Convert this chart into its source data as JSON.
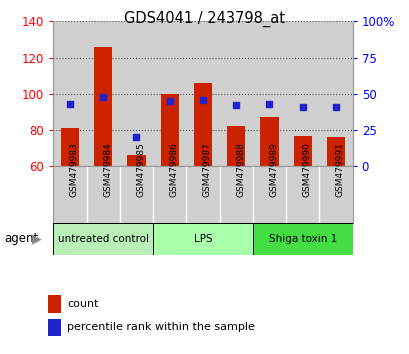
{
  "title": "GDS4041 / 243798_at",
  "samples": [
    "GSM479983",
    "GSM479984",
    "GSM479985",
    "GSM479986",
    "GSM479987",
    "GSM479988",
    "GSM479989",
    "GSM479990",
    "GSM479991"
  ],
  "counts": [
    81,
    126,
    66,
    100,
    106,
    82,
    87,
    77,
    76
  ],
  "percentile_ranks": [
    43,
    48,
    20,
    45,
    46,
    42,
    43,
    41,
    41
  ],
  "ylim_left": [
    60,
    140
  ],
  "ylim_right": [
    0,
    100
  ],
  "yticks_left": [
    60,
    80,
    100,
    120,
    140
  ],
  "yticks_right": [
    0,
    25,
    50,
    75,
    100
  ],
  "yticklabels_right": [
    "0",
    "25",
    "50",
    "75",
    "100%"
  ],
  "bar_color": "#cc2200",
  "dot_color": "#2222cc",
  "bar_width": 0.55,
  "groups": [
    {
      "label": "untreated control",
      "start": 0,
      "end": 2,
      "color": "#aaffaa"
    },
    {
      "label": "LPS",
      "start": 3,
      "end": 5,
      "color": "#aaffaa"
    },
    {
      "label": "Shiga toxin 1",
      "start": 6,
      "end": 8,
      "color": "#55ee55"
    }
  ],
  "group_colors": [
    "#c8f8c8",
    "#aaffaa",
    "#44ee44"
  ],
  "agent_label": "agent",
  "legend_count_label": "count",
  "legend_pct_label": "percentile rank within the sample",
  "col_bg": "#d0d0d0",
  "plot_bg": "#ffffff",
  "spine_color": "#999999"
}
